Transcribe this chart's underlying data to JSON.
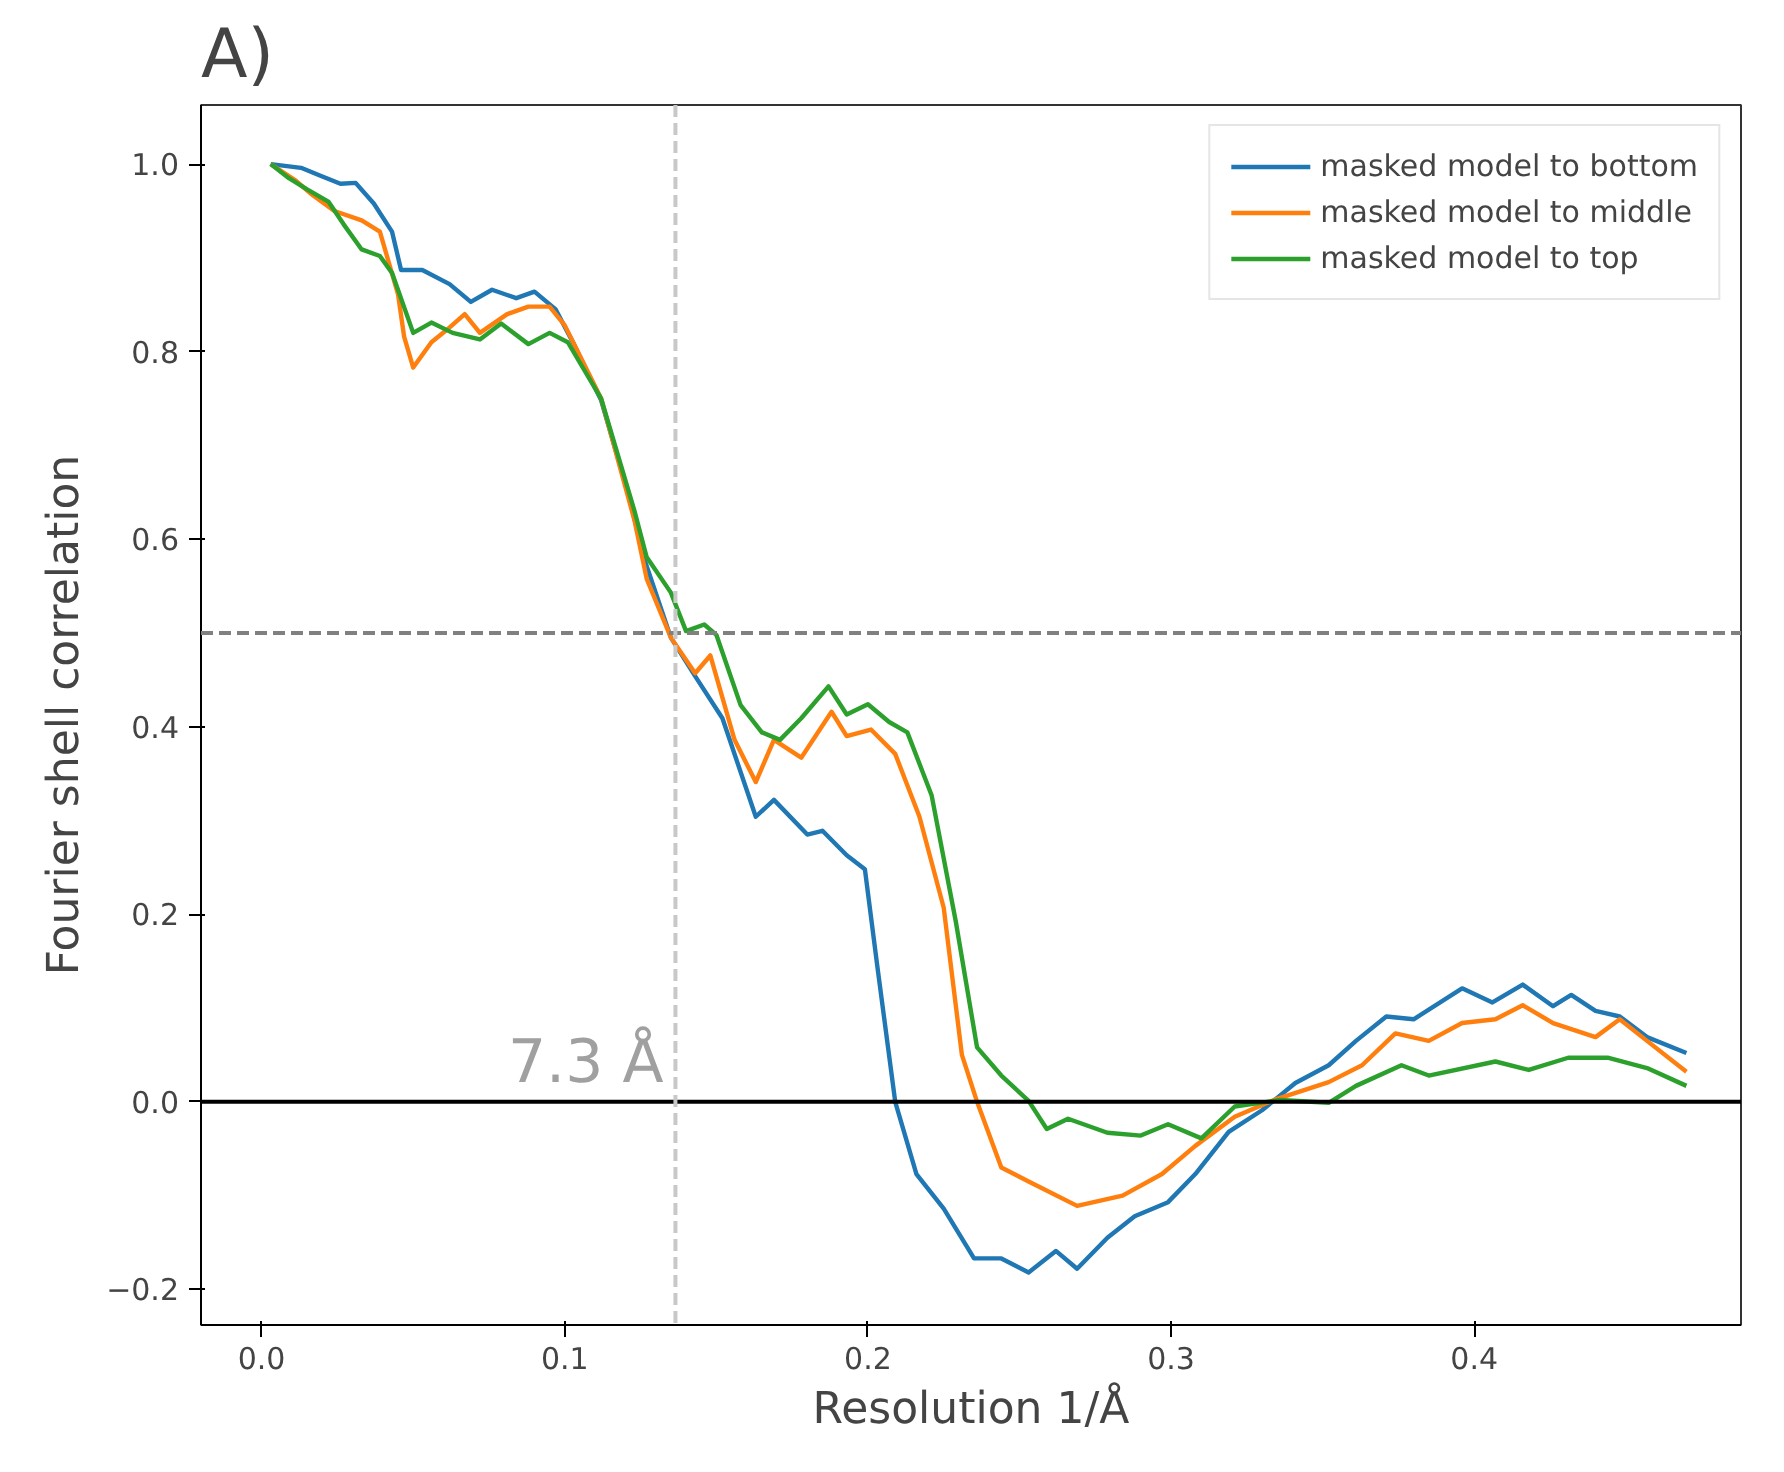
{
  "chart_data": {
    "type": "line",
    "title": "A)",
    "xlabel": "Resolution 1/Å",
    "ylabel": "Fourier shell correlation",
    "xlim": [
      -0.02,
      0.488
    ],
    "ylim": [
      -0.238,
      1.063
    ],
    "xticks": [
      {
        "value": 0,
        "label": "0.0"
      },
      0.1,
      0.2,
      0.3,
      0.4
    ],
    "yticks": [
      {
        "value": -0.2,
        "label": "−0.2"
      },
      {
        "value": 0,
        "label": "0.0"
      },
      0.2,
      0.4,
      0.6,
      0.8,
      {
        "value": 1,
        "label": "1.0"
      }
    ],
    "grid": false,
    "legend": "top right",
    "line_style": "solid",
    "marker": "none",
    "ref_lines": [
      {
        "axis": "y",
        "value": 0.5,
        "color": "#808080",
        "line_style": "dashed"
      },
      {
        "axis": "y",
        "value": 0,
        "color": "#000000",
        "line_style": "solid"
      },
      {
        "axis": "x",
        "value": 0.1365,
        "label": "7.3 Å",
        "color": "#c8c8c8",
        "line_style": "dashed"
      }
    ],
    "series": [
      {
        "name": "masked model to bottom",
        "color": "#1f77b4",
        "x": [
          0.003,
          0.013,
          0.019,
          0.026,
          0.031,
          0.037,
          0.043,
          0.046,
          0.053,
          0.062,
          0.069,
          0.076,
          0.084,
          0.09,
          0.097,
          0.103,
          0.112,
          0.121,
          0.126,
          0.135,
          0.143,
          0.152,
          0.163,
          0.169,
          0.18,
          0.185,
          0.193,
          0.199,
          0.203,
          0.209,
          0.216,
          0.225,
          0.235,
          0.244,
          0.253,
          0.262,
          0.269,
          0.279,
          0.288,
          0.299,
          0.308,
          0.319,
          0.33,
          0.341,
          0.352,
          0.361,
          0.371,
          0.38,
          0.396,
          0.406,
          0.416,
          0.426,
          0.432,
          0.44,
          0.448,
          0.457,
          0.47
        ],
        "values": [
          1.0,
          0.996,
          0.988,
          0.979,
          0.98,
          0.958,
          0.928,
          0.887,
          0.887,
          0.872,
          0.853,
          0.866,
          0.857,
          0.864,
          0.845,
          0.808,
          0.748,
          0.648,
          0.581,
          0.495,
          0.454,
          0.409,
          0.304,
          0.322,
          0.285,
          0.289,
          0.263,
          0.248,
          0.147,
          0.0,
          -0.077,
          -0.114,
          -0.167,
          -0.167,
          -0.182,
          -0.159,
          -0.178,
          -0.145,
          -0.122,
          -0.107,
          -0.077,
          -0.032,
          -0.009,
          0.02,
          0.039,
          0.065,
          0.091,
          0.088,
          0.121,
          0.106,
          0.125,
          0.102,
          0.114,
          0.097,
          0.091,
          0.069,
          0.052
        ]
      },
      {
        "name": "masked model to middle",
        "color": "#ff7f0e",
        "x": [
          0.003,
          0.011,
          0.016,
          0.024,
          0.033,
          0.039,
          0.045,
          0.047,
          0.05,
          0.056,
          0.061,
          0.067,
          0.072,
          0.081,
          0.088,
          0.095,
          0.1,
          0.112,
          0.123,
          0.127,
          0.135,
          0.143,
          0.148,
          0.156,
          0.163,
          0.169,
          0.178,
          0.188,
          0.193,
          0.201,
          0.209,
          0.217,
          0.225,
          0.231,
          0.236,
          0.244,
          0.253,
          0.269,
          0.284,
          0.297,
          0.308,
          0.321,
          0.334,
          0.352,
          0.363,
          0.374,
          0.385,
          0.396,
          0.407,
          0.416,
          0.426,
          0.44,
          0.448,
          0.457,
          0.47
        ],
        "values": [
          1.0,
          0.983,
          0.969,
          0.95,
          0.94,
          0.928,
          0.861,
          0.816,
          0.783,
          0.81,
          0.823,
          0.84,
          0.82,
          0.84,
          0.848,
          0.848,
          0.828,
          0.75,
          0.62,
          0.558,
          0.495,
          0.457,
          0.476,
          0.386,
          0.341,
          0.386,
          0.367,
          0.416,
          0.39,
          0.397,
          0.371,
          0.304,
          0.207,
          0.05,
          0.0,
          -0.07,
          -0.085,
          -0.111,
          -0.1,
          -0.077,
          -0.047,
          -0.016,
          0.002,
          0.021,
          0.039,
          0.073,
          0.065,
          0.084,
          0.088,
          0.103,
          0.084,
          0.069,
          0.088,
          0.065,
          0.032
        ]
      },
      {
        "name": "masked model to top",
        "color": "#2ca02c",
        "x": [
          0.003,
          0.009,
          0.015,
          0.022,
          0.027,
          0.033,
          0.039,
          0.043,
          0.05,
          0.056,
          0.063,
          0.072,
          0.079,
          0.088,
          0.095,
          0.101,
          0.112,
          0.123,
          0.127,
          0.135,
          0.14,
          0.146,
          0.15,
          0.158,
          0.165,
          0.171,
          0.178,
          0.187,
          0.193,
          0.2,
          0.207,
          0.213,
          0.221,
          0.229,
          0.236,
          0.244,
          0.253,
          0.259,
          0.266,
          0.279,
          0.29,
          0.299,
          0.31,
          0.321,
          0.336,
          0.352,
          0.361,
          0.376,
          0.385,
          0.407,
          0.418,
          0.431,
          0.444,
          0.457,
          0.47
        ],
        "values": [
          1.0,
          0.985,
          0.973,
          0.96,
          0.936,
          0.909,
          0.902,
          0.884,
          0.82,
          0.831,
          0.82,
          0.813,
          0.83,
          0.808,
          0.82,
          0.81,
          0.75,
          0.63,
          0.581,
          0.543,
          0.502,
          0.509,
          0.498,
          0.423,
          0.394,
          0.386,
          0.409,
          0.443,
          0.413,
          0.424,
          0.405,
          0.394,
          0.327,
          0.192,
          0.058,
          0.028,
          0.001,
          -0.029,
          -0.018,
          -0.033,
          -0.036,
          -0.024,
          -0.039,
          -0.005,
          0.002,
          -0.001,
          0.017,
          0.039,
          0.028,
          0.043,
          0.034,
          0.047,
          0.047,
          0.036,
          0.017
        ]
      }
    ]
  }
}
